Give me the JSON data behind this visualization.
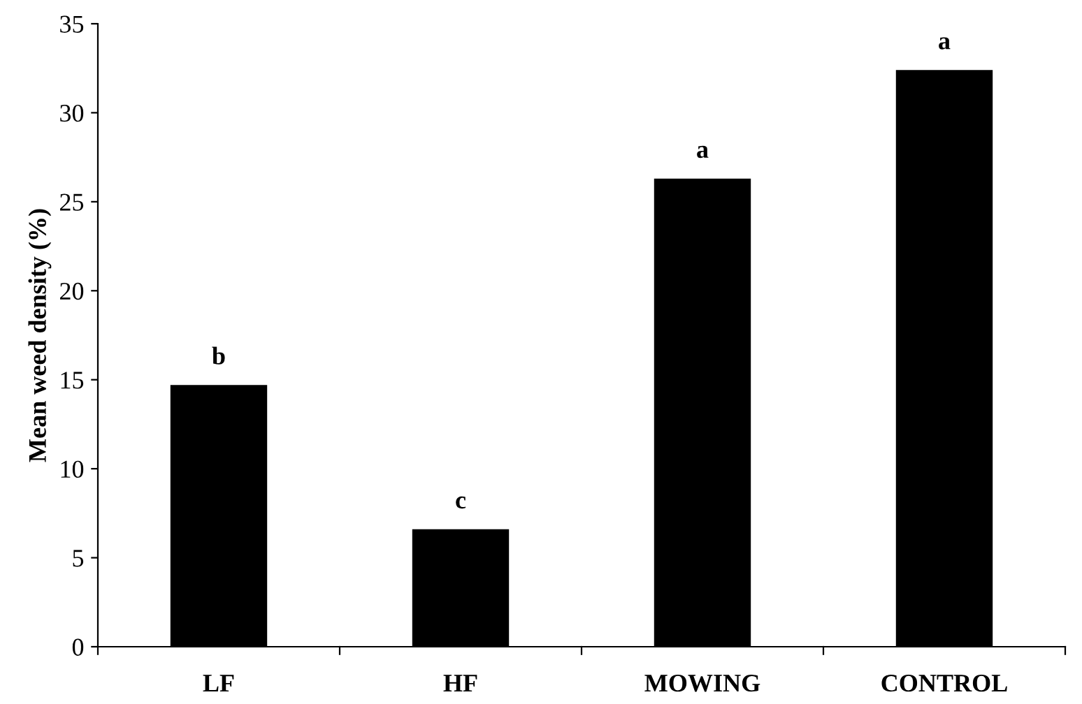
{
  "chart_data": {
    "type": "bar",
    "ylabel": "Mean weed density (%)",
    "categories": [
      "LF",
      "HF",
      "MOWING",
      "CONTROL"
    ],
    "values": [
      14.7,
      6.6,
      26.3,
      32.4
    ],
    "color": "#000000",
    "ylim": [
      0,
      35
    ],
    "yticks": [
      0,
      5,
      10,
      15,
      20,
      25,
      30,
      35
    ],
    "grid": false,
    "legend": false,
    "annotations": [
      {
        "text": "b",
        "x": "LF",
        "y": 14.7
      },
      {
        "text": "c",
        "x": "HF",
        "y": 6.6
      },
      {
        "text": "a",
        "x": "MOWING",
        "y": 26.3
      },
      {
        "text": "a",
        "x": "CONTROL",
        "y": 32.4
      }
    ]
  }
}
